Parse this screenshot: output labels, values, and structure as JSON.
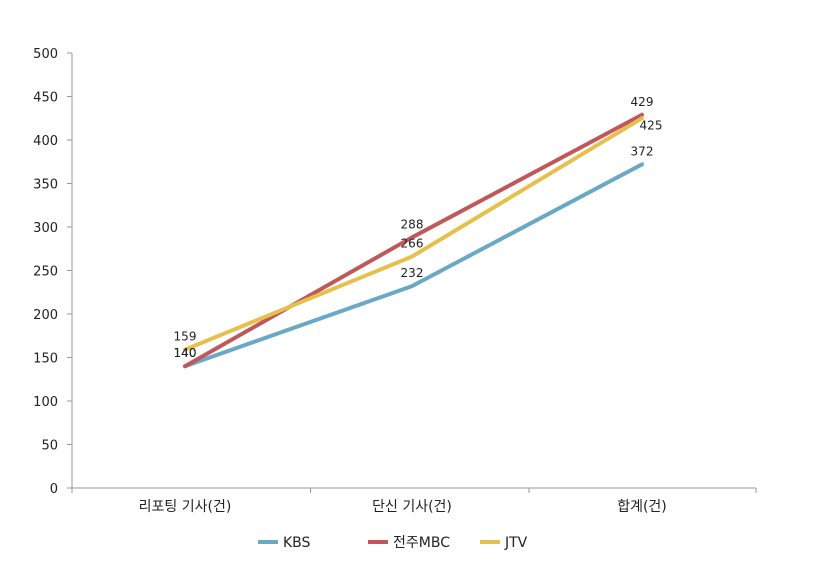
{
  "chart_data": {
    "type": "line",
    "categories": [
      "리포팅 기사(건)",
      "단신 기사(건)",
      "합계(건)"
    ],
    "series": [
      {
        "name": "KBS",
        "values": [
          140,
          232,
          372
        ],
        "color": "#6aa9c5"
      },
      {
        "name": "전주MBC",
        "values": [
          140,
          288,
          429
        ],
        "color": "#c0585a"
      },
      {
        "name": "JTV",
        "values": [
          159,
          266,
          425
        ],
        "color": "#e6c04c"
      }
    ],
    "ylim": [
      0,
      500
    ],
    "yticks": [
      0,
      50,
      100,
      150,
      200,
      250,
      300,
      350,
      400,
      450,
      500
    ],
    "grid": false,
    "legend_position": "bottom"
  }
}
